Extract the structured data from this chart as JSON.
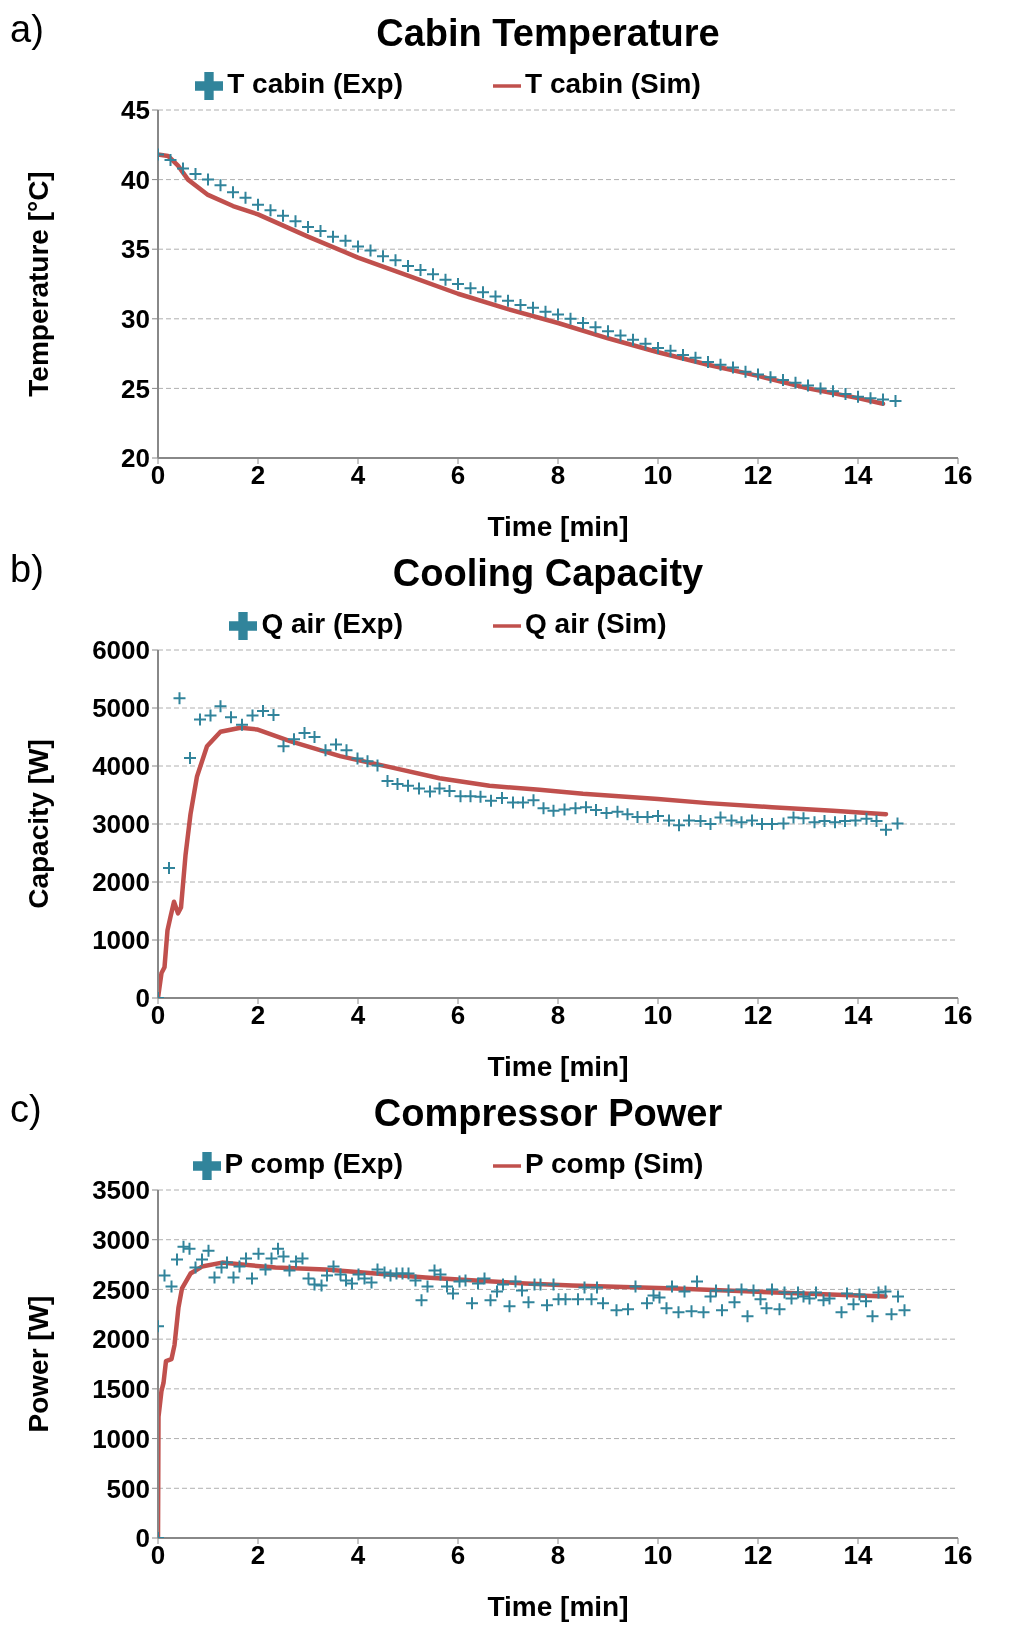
{
  "chart_data": [
    {
      "type": "line",
      "title": "Cabin Temperature",
      "xlabel": "Time [min]",
      "ylabel": "Temperature [°C]",
      "annotations": [
        "a)"
      ],
      "xlim": [
        0,
        16
      ],
      "xticks": [
        0,
        2,
        4,
        6,
        8,
        10,
        12,
        14,
        16
      ],
      "ylim": [
        20,
        45
      ],
      "yticks": [
        20,
        25,
        30,
        35,
        40,
        45
      ],
      "grid": "y",
      "legend": "top",
      "series": [
        {
          "name": "T cabin (Exp)",
          "type": "scatter",
          "marker": "cross",
          "color": "#31849b",
          "x": [
            0,
            0.25,
            0.5,
            0.75,
            1,
            1.25,
            1.5,
            1.75,
            2,
            2.25,
            2.5,
            2.75,
            3,
            3.25,
            3.5,
            3.75,
            4,
            4.25,
            4.5,
            4.75,
            5,
            5.25,
            5.5,
            5.75,
            6,
            6.25,
            6.5,
            6.75,
            7,
            7.25,
            7.5,
            7.75,
            8,
            8.25,
            8.5,
            8.75,
            9,
            9.25,
            9.5,
            9.75,
            10,
            10.25,
            10.5,
            10.75,
            11,
            11.25,
            11.5,
            11.75,
            12,
            12.25,
            12.5,
            12.75,
            13,
            13.25,
            13.5,
            13.75,
            14,
            14.25,
            14.5,
            14.75
          ],
          "values": [
            41.8,
            41.4,
            40.8,
            40.4,
            40.0,
            39.6,
            39.1,
            38.7,
            38.2,
            37.8,
            37.4,
            37.0,
            36.6,
            36.3,
            35.9,
            35.6,
            35.2,
            34.9,
            34.5,
            34.2,
            33.8,
            33.5,
            33.2,
            32.8,
            32.5,
            32.2,
            31.9,
            31.6,
            31.3,
            31.0,
            30.8,
            30.5,
            30.3,
            30.0,
            29.7,
            29.4,
            29.1,
            28.8,
            28.5,
            28.2,
            27.9,
            27.7,
            27.4,
            27.2,
            26.9,
            26.7,
            26.5,
            26.2,
            26.0,
            25.8,
            25.6,
            25.4,
            25.2,
            25.0,
            24.8,
            24.6,
            24.4,
            24.3,
            24.2,
            24.1
          ]
        },
        {
          "name": "T cabin (Sim)",
          "marker": "none",
          "color": "#c0504d",
          "x": [
            0,
            0.2,
            0.4,
            0.6,
            1,
            1.5,
            2,
            3,
            4,
            5,
            6,
            7,
            8,
            9,
            10,
            11,
            12,
            13,
            14,
            14.5
          ],
          "values": [
            41.8,
            41.7,
            41.0,
            40.0,
            38.9,
            38.1,
            37.5,
            35.9,
            34.4,
            33.1,
            31.8,
            30.7,
            29.7,
            28.6,
            27.6,
            26.7,
            25.9,
            25.0,
            24.3,
            23.9
          ]
        }
      ]
    },
    {
      "type": "line",
      "title": "Cooling Capacity",
      "xlabel": "Time [min]",
      "ylabel": "Capacity [W]",
      "annotations": [
        "b)"
      ],
      "xlim": [
        0,
        16
      ],
      "xticks": [
        0,
        2,
        4,
        6,
        8,
        10,
        12,
        14,
        16
      ],
      "ylim": [
        0,
        6000
      ],
      "yticks": [
        0,
        1000,
        2000,
        3000,
        4000,
        5000,
        6000
      ],
      "grid": "y",
      "legend": "top",
      "series": [
        {
          "name": "Q air (Exp)",
          "type": "scatter",
          "marker": "cross",
          "color": "#31849b",
          "x": [
            0,
            0.22,
            0.43,
            0.64,
            0.84,
            1.05,
            1.25,
            1.46,
            1.68,
            1.89,
            2.1,
            2.31,
            2.51,
            2.72,
            2.93,
            3.13,
            3.35,
            3.56,
            3.77,
            3.99,
            4.19,
            4.39,
            4.59,
            4.79,
            5.0,
            5.22,
            5.44,
            5.63,
            5.83,
            6.05,
            6.25,
            6.45,
            6.66,
            6.88,
            7.1,
            7.3,
            7.51,
            7.71,
            7.91,
            8.13,
            8.35,
            8.56,
            8.76,
            8.97,
            9.19,
            9.39,
            9.59,
            9.79,
            10.0,
            10.22,
            10.42,
            10.62,
            10.85,
            11.05,
            11.25,
            11.47,
            11.67,
            11.88,
            12.08,
            12.28,
            12.51,
            12.71,
            12.91,
            13.13,
            13.33,
            13.54,
            13.74,
            13.95,
            14.17,
            14.37,
            14.56,
            14.79
          ],
          "values": [
            0,
            2240,
            5170,
            4140,
            4800,
            4870,
            5030,
            4840,
            4710,
            4870,
            4950,
            4880,
            4340,
            4460,
            4570,
            4500,
            4270,
            4370,
            4270,
            4130,
            4080,
            4010,
            3740,
            3690,
            3660,
            3610,
            3560,
            3610,
            3570,
            3480,
            3480,
            3470,
            3400,
            3450,
            3370,
            3370,
            3410,
            3270,
            3230,
            3250,
            3270,
            3290,
            3240,
            3190,
            3210,
            3170,
            3120,
            3120,
            3140,
            3060,
            2980,
            3060,
            3050,
            3000,
            3110,
            3060,
            3030,
            3060,
            3000,
            3000,
            3010,
            3110,
            3100,
            3030,
            3050,
            3030,
            3050,
            3060,
            3090,
            3050,
            2900,
            3010
          ]
        },
        {
          "name": "Q air (Sim)",
          "marker": "none",
          "color": "#c0504d",
          "x": [
            0,
            0.07,
            0.13,
            0.19,
            0.25,
            0.32,
            0.4,
            0.46,
            0.55,
            0.65,
            0.78,
            0.98,
            1.25,
            1.65,
            1.98,
            2.64,
            3.64,
            4.64,
            5.63,
            6.63,
            7.63,
            8.5,
            10,
            11,
            12.28,
            13.5,
            14.56
          ],
          "values": [
            0,
            430,
            530,
            1170,
            1400,
            1660,
            1460,
            1560,
            2460,
            3170,
            3820,
            4340,
            4590,
            4660,
            4630,
            4430,
            4170,
            3980,
            3790,
            3660,
            3590,
            3520,
            3430,
            3360,
            3290,
            3230,
            3170
          ]
        }
      ]
    },
    {
      "type": "line",
      "title": "Compressor Power",
      "xlabel": "Time [min]",
      "ylabel": "Power  [W]",
      "annotations": [
        "c)"
      ],
      "xlim": [
        0,
        16
      ],
      "xticks": [
        0,
        2,
        4,
        6,
        8,
        10,
        12,
        14,
        16
      ],
      "ylim": [
        0,
        3500
      ],
      "yticks": [
        0,
        500,
        1000,
        1500,
        2000,
        2500,
        3000,
        3500
      ],
      "grid": "y",
      "legend": "top",
      "series": [
        {
          "name": "P comp (Exp)",
          "type": "scatter",
          "marker": "cross",
          "color": "#31849b",
          "x": [
            0,
            0,
            0.13,
            0.27,
            0.38,
            0.51,
            0.63,
            0.75,
            0.88,
            1.01,
            1.13,
            1.27,
            1.38,
            1.51,
            1.63,
            1.76,
            1.88,
            2.01,
            2.15,
            2.27,
            2.4,
            2.51,
            2.63,
            2.76,
            2.89,
            3.01,
            3.13,
            3.27,
            3.38,
            3.51,
            3.65,
            3.76,
            3.88,
            4.01,
            4.13,
            4.27,
            4.39,
            4.53,
            4.65,
            4.77,
            4.89,
            5.01,
            5.15,
            5.27,
            5.39,
            5.53,
            5.65,
            5.78,
            5.9,
            6.03,
            6.15,
            6.28,
            6.4,
            6.53,
            6.65,
            6.78,
            6.9,
            7.03,
            7.15,
            7.28,
            7.41,
            7.53,
            7.65,
            7.78,
            7.91,
            8.01,
            8.15,
            8.4,
            8.53,
            8.67,
            8.78,
            8.9,
            9.17,
            9.4,
            9.55,
            9.78,
            9.91,
            10.03,
            10.17,
            10.28,
            10.41,
            10.53,
            10.67,
            10.78,
            10.91,
            11.05,
            11.16,
            11.28,
            11.41,
            11.53,
            11.67,
            11.79,
            11.91,
            12.05,
            12.17,
            12.28,
            12.43,
            12.53,
            12.67,
            12.8,
            12.91,
            13.03,
            13.16,
            13.31,
            13.43,
            13.67,
            13.78,
            13.91,
            14.03,
            14.16,
            14.29,
            14.41,
            14.55,
            14.67,
            14.8,
            14.93
          ],
          "values": [
            0,
            2130,
            2640,
            2530,
            2800,
            2930,
            2910,
            2720,
            2800,
            2890,
            2620,
            2720,
            2770,
            2620,
            2730,
            2810,
            2610,
            2860,
            2700,
            2810,
            2910,
            2830,
            2690,
            2780,
            2810,
            2610,
            2550,
            2540,
            2640,
            2730,
            2650,
            2590,
            2560,
            2650,
            2610,
            2570,
            2700,
            2670,
            2640,
            2660,
            2660,
            2660,
            2590,
            2390,
            2530,
            2690,
            2650,
            2530,
            2460,
            2580,
            2590,
            2360,
            2560,
            2610,
            2390,
            2480,
            2550,
            2330,
            2580,
            2490,
            2370,
            2550,
            2550,
            2340,
            2550,
            2400,
            2400,
            2400,
            2520,
            2400,
            2520,
            2360,
            2290,
            2300,
            2530,
            2360,
            2440,
            2420,
            2310,
            2530,
            2270,
            2480,
            2280,
            2580,
            2270,
            2430,
            2490,
            2290,
            2490,
            2370,
            2500,
            2230,
            2490,
            2400,
            2310,
            2500,
            2300,
            2470,
            2410,
            2470,
            2430,
            2410,
            2470,
            2390,
            2410,
            2270,
            2460,
            2350,
            2450,
            2380,
            2230,
            2470,
            2480,
            2250,
            2430,
            2290
          ]
        },
        {
          "name": "P comp (Sim)",
          "marker": "none",
          "color": "#c0504d",
          "x": [
            0,
            0.01,
            0.07,
            0.11,
            0.16,
            0.27,
            0.33,
            0.41,
            0.48,
            0.65,
            0.88,
            1.28,
            1.68,
            2.35,
            3.35,
            4.35,
            5.35,
            6.35,
            7.35,
            8.28,
            10.35,
            12.35,
            14.55
          ],
          "values": [
            0,
            1220,
            1480,
            1560,
            1780,
            1800,
            1940,
            2320,
            2510,
            2660,
            2730,
            2770,
            2750,
            2720,
            2700,
            2660,
            2620,
            2590,
            2560,
            2540,
            2510,
            2470,
            2430
          ]
        }
      ]
    }
  ]
}
